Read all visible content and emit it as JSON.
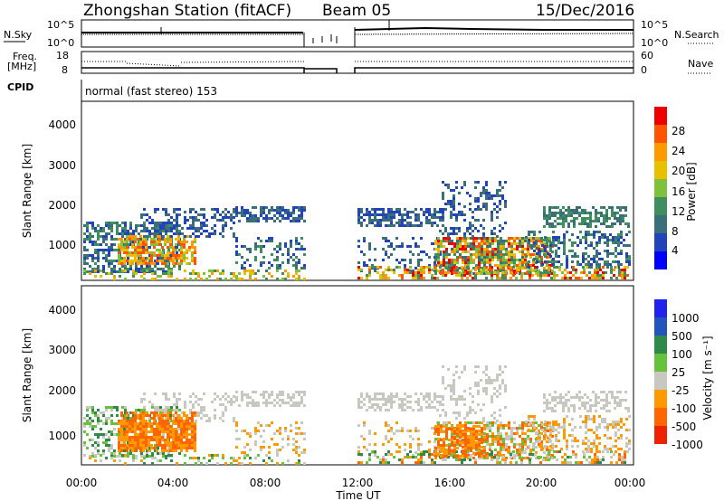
{
  "header": {
    "station": "Zhongshan Station (fitACF)",
    "beam": "Beam 05",
    "date": "15/Dec/2016"
  },
  "noise_panel": {
    "left_label": "N.Sky",
    "right_label": "N.Search",
    "left_ticks": [
      "10^5",
      "10^0"
    ],
    "right_ticks": [
      "10^5",
      "10^0"
    ]
  },
  "freq_panel": {
    "left_label_line1": "Freq.",
    "left_label_line2": "[MHz]",
    "right_label": "Nave",
    "left_ticks": [
      "18",
      "8"
    ],
    "right_ticks": [
      "60",
      "0"
    ]
  },
  "cpid": {
    "label": "CPID",
    "text": "normal (fast stereo) 153"
  },
  "colors": {
    "power_scale": [
      "#0000ff",
      "#2244bb",
      "#3a6f7a",
      "#3e8e5e",
      "#7fc03c",
      "#e8c000",
      "#ff9900",
      "#ff5500",
      "#ee0000"
    ],
    "velocity_scale": [
      "#2222ee",
      "#2255bb",
      "#2f8a4a",
      "#66c23a",
      "#c8c8c0",
      "#ff9900",
      "#ff6600",
      "#ee2200"
    ]
  },
  "chart_data": [
    {
      "type": "heatmap",
      "panel": "power",
      "ylabel": "Slant Range [km]",
      "y_ticks": [
        "1000",
        "2000",
        "3000",
        "4000"
      ],
      "ylim": [
        180,
        4600
      ],
      "colorbar_label": "Power [dB]",
      "colorbar_ticks": [
        "4",
        "8",
        "12",
        "16",
        "20",
        "24",
        "28"
      ],
      "colorbar_range": [
        0,
        30
      ]
    },
    {
      "type": "heatmap",
      "panel": "velocity",
      "ylabel": "Slant Range [km]",
      "y_ticks": [
        "1000",
        "2000",
        "3000",
        "4000"
      ],
      "ylim": [
        180,
        4600
      ],
      "colorbar_label": "Velocity [m s⁻¹]",
      "colorbar_ticks": [
        "1000",
        "500",
        "100",
        "25",
        "-25",
        "-100",
        "-500",
        "-1000"
      ]
    }
  ],
  "x_axis": {
    "label": "Time UT",
    "ticks": [
      "00:00",
      "04:00",
      "08:00",
      "12:00",
      "16:00",
      "20:00",
      "00:00"
    ]
  }
}
